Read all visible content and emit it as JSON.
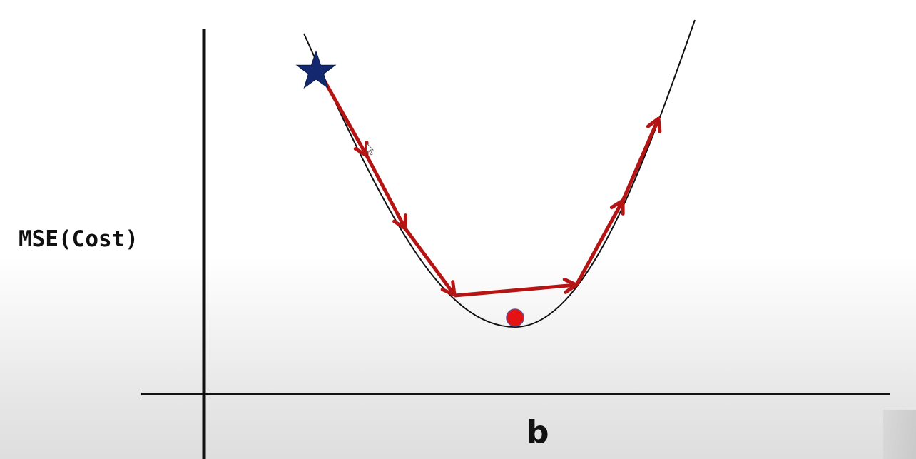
{
  "diagram": {
    "y_axis_label": "MSE(Cost)",
    "x_axis_label": "b",
    "colors": {
      "axis": "#111111",
      "curve": "#111111",
      "step_arrow": "#b51414",
      "start_star": "#13286e",
      "minimum_dot": "#e41212",
      "minimum_dot_outline": "#6a4a8a"
    },
    "start_marker_icon": "star-icon",
    "minimum_marker_icon": "circle-icon",
    "step_count": 6
  }
}
